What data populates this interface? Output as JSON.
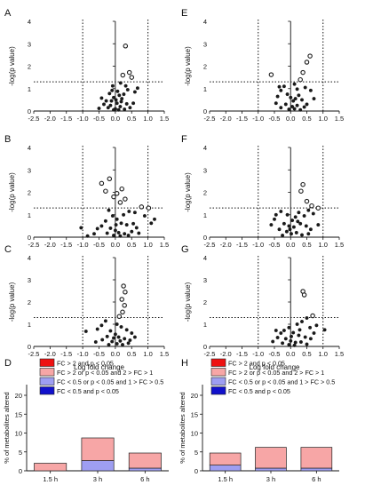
{
  "colors": {
    "dot": "#1a1a1a",
    "axis": "#111111",
    "red": "#ee1111",
    "pink": "#f7a6a6",
    "lavender": "#9e9ef2",
    "navy": "#1111cc",
    "stroke": "#222222"
  },
  "chart_data": [
    {
      "type": "scatter",
      "panel": "A",
      "xlabel": "",
      "ylabel": "-log(p value)",
      "xlim": [
        -2.5,
        1.5
      ],
      "ylim": [
        0,
        4
      ],
      "xticks": [
        "-2.5",
        "-2.0",
        "-1.5",
        "-1.0",
        "-0.5",
        "0.0",
        "0.5",
        "1.0",
        "1.5"
      ],
      "yticks": [
        "0",
        "1",
        "2",
        "3",
        "4"
      ],
      "thresholds": {
        "x": [
          -1,
          1
        ],
        "y": 1.3
      },
      "points": [
        [
          0.31,
          2.9
        ],
        [
          0.43,
          1.72
        ],
        [
          0.5,
          1.5
        ],
        [
          0.23,
          1.6
        ],
        [
          0.16,
          1.25
        ],
        [
          0.32,
          1.12
        ],
        [
          0.68,
          1.02
        ],
        [
          0.38,
          0.95
        ],
        [
          0.6,
          0.85
        ],
        [
          -0.08,
          1.12
        ],
        [
          -0.1,
          0.92
        ],
        [
          -0.18,
          0.78
        ],
        [
          -0.05,
          0.6
        ],
        [
          0.07,
          0.88
        ],
        [
          0.12,
          0.7
        ],
        [
          0.2,
          0.55
        ],
        [
          0.26,
          0.75
        ],
        [
          -0.28,
          0.45
        ],
        [
          -0.35,
          0.3
        ],
        [
          -0.15,
          0.25
        ],
        [
          0.05,
          0.35
        ],
        [
          0.15,
          0.2
        ],
        [
          0.35,
          0.32
        ],
        [
          0.45,
          0.15
        ],
        [
          -0.22,
          0.15
        ],
        [
          0.0,
          0.1
        ],
        [
          -0.05,
          0.05
        ],
        [
          0.1,
          0.05
        ],
        [
          0.28,
          0.08
        ],
        [
          0.55,
          0.35
        ],
        [
          -0.42,
          0.58
        ],
        [
          -0.5,
          0.12
        ],
        [
          0.18,
          0.42
        ],
        [
          0.02,
          0.5
        ],
        [
          -0.12,
          0.45
        ]
      ]
    },
    {
      "type": "scatter",
      "panel": "E",
      "xlabel": "",
      "ylabel": "-log(p value)",
      "xlim": [
        -2.5,
        1.5
      ],
      "ylim": [
        0,
        4
      ],
      "xticks": [
        "-2.5",
        "-2.0",
        "-1.5",
        "-1.0",
        "-0.5",
        "0.0",
        "0.5",
        "1.0",
        "1.5"
      ],
      "yticks": [
        "0",
        "1",
        "2",
        "3",
        "4"
      ],
      "thresholds": {
        "x": [
          -1,
          1
        ],
        "y": 1.3
      },
      "points": [
        [
          0.6,
          2.45
        ],
        [
          0.5,
          2.18
        ],
        [
          -0.6,
          1.62
        ],
        [
          0.38,
          1.72
        ],
        [
          0.3,
          1.4
        ],
        [
          -0.35,
          1.08
        ],
        [
          -0.3,
          0.92
        ],
        [
          -0.2,
          1.1
        ],
        [
          0.12,
          1.2
        ],
        [
          0.2,
          0.98
        ],
        [
          0.45,
          1.05
        ],
        [
          0.62,
          0.92
        ],
        [
          -0.1,
          0.75
        ],
        [
          0.0,
          0.6
        ],
        [
          0.08,
          0.45
        ],
        [
          0.25,
          0.7
        ],
        [
          0.35,
          0.5
        ],
        [
          -0.45,
          0.35
        ],
        [
          -0.15,
          0.3
        ],
        [
          0.05,
          0.2
        ],
        [
          0.2,
          0.25
        ],
        [
          0.5,
          0.3
        ],
        [
          -0.3,
          0.15
        ],
        [
          -0.05,
          0.08
        ],
        [
          0.12,
          0.1
        ],
        [
          0.3,
          0.05
        ],
        [
          0.15,
          0.55
        ],
        [
          -0.4,
          0.65
        ],
        [
          0.72,
          0.55
        ],
        [
          0.42,
          0.18
        ]
      ]
    },
    {
      "type": "scatter",
      "panel": "B",
      "xlabel": "",
      "ylabel": "-log(p value)",
      "xlim": [
        -2.5,
        1.5
      ],
      "ylim": [
        0,
        4
      ],
      "xticks": [
        "-2.5",
        "-2.0",
        "-1.5",
        "-1.0",
        "-0.5",
        "0.0",
        "0.5",
        "1.0",
        "1.5"
      ],
      "yticks": [
        "0",
        "1",
        "2",
        "3",
        "4"
      ],
      "thresholds": {
        "x": [
          -1,
          1
        ],
        "y": 1.3
      },
      "points": [
        [
          -0.18,
          2.6
        ],
        [
          0.2,
          2.15
        ],
        [
          -0.3,
          2.05
        ],
        [
          -0.42,
          2.4
        ],
        [
          0.05,
          1.95
        ],
        [
          -0.05,
          1.8
        ],
        [
          0.3,
          1.7
        ],
        [
          0.15,
          1.55
        ],
        [
          0.8,
          1.35
        ],
        [
          1.02,
          1.3
        ],
        [
          0.6,
          1.1
        ],
        [
          0.9,
          0.95
        ],
        [
          1.2,
          0.8
        ],
        [
          1.1,
          0.62
        ],
        [
          0.42,
          1.15
        ],
        [
          0.25,
          1.0
        ],
        [
          -0.2,
          1.2
        ],
        [
          -0.08,
          0.95
        ],
        [
          0.05,
          0.8
        ],
        [
          0.18,
          0.62
        ],
        [
          0.35,
          0.55
        ],
        [
          -0.3,
          0.72
        ],
        [
          -0.42,
          0.5
        ],
        [
          -0.55,
          0.38
        ],
        [
          -0.15,
          0.4
        ],
        [
          0.0,
          0.3
        ],
        [
          0.1,
          0.2
        ],
        [
          0.28,
          0.15
        ],
        [
          0.5,
          0.25
        ],
        [
          0.65,
          0.42
        ],
        [
          -0.25,
          0.18
        ],
        [
          -0.05,
          0.08
        ],
        [
          0.15,
          0.05
        ],
        [
          0.4,
          0.08
        ],
        [
          0.72,
          0.18
        ],
        [
          -0.65,
          0.15
        ],
        [
          -0.85,
          0.05
        ],
        [
          0.55,
          0.6
        ],
        [
          -1.05,
          0.42
        ],
        [
          0.02,
          0.55
        ]
      ]
    },
    {
      "type": "scatter",
      "panel": "F",
      "xlabel": "",
      "ylabel": "-log(p value)",
      "xlim": [
        -2.5,
        1.5
      ],
      "ylim": [
        0,
        4
      ],
      "xticks": [
        "-2.5",
        "-2.0",
        "-1.5",
        "-1.0",
        "-0.5",
        "0.0",
        "0.5",
        "1.0",
        "1.5"
      ],
      "yticks": [
        "0",
        "1",
        "2",
        "3",
        "4"
      ],
      "thresholds": {
        "x": [
          -1,
          1
        ],
        "y": 1.3
      },
      "points": [
        [
          0.38,
          2.35
        ],
        [
          0.32,
          2.05
        ],
        [
          0.5,
          1.6
        ],
        [
          0.65,
          1.4
        ],
        [
          0.85,
          1.3
        ],
        [
          0.55,
          1.2
        ],
        [
          0.7,
          1.05
        ],
        [
          0.42,
          0.95
        ],
        [
          0.25,
          1.1
        ],
        [
          0.15,
          0.9
        ],
        [
          0.05,
          0.75
        ],
        [
          -0.1,
          1.0
        ],
        [
          -0.3,
          1.15
        ],
        [
          -0.45,
          1.0
        ],
        [
          -0.5,
          0.8
        ],
        [
          -0.2,
          0.6
        ],
        [
          -0.05,
          0.5
        ],
        [
          0.1,
          0.45
        ],
        [
          0.3,
          0.6
        ],
        [
          0.48,
          0.5
        ],
        [
          0.62,
          0.35
        ],
        [
          -0.35,
          0.35
        ],
        [
          -0.12,
          0.25
        ],
        [
          0.02,
          0.15
        ],
        [
          0.18,
          0.2
        ],
        [
          0.35,
          0.1
        ],
        [
          -0.25,
          0.08
        ],
        [
          0.55,
          0.15
        ],
        [
          0.85,
          0.55
        ],
        [
          -0.6,
          0.55
        ],
        [
          0.22,
          0.7
        ],
        [
          -0.02,
          0.35
        ]
      ]
    },
    {
      "type": "scatter",
      "panel": "C",
      "xlabel": "Log fold change",
      "ylabel": "-log(p value)",
      "xlim": [
        -2.5,
        1.5
      ],
      "ylim": [
        0,
        4
      ],
      "xticks": [
        "-2.5",
        "-2.0",
        "-1.5",
        "-1.0",
        "-0.5",
        "0.0",
        "0.5",
        "1.0",
        "1.5"
      ],
      "yticks": [
        "0",
        "1",
        "2",
        "3",
        "4"
      ],
      "thresholds": {
        "x": [
          -1,
          1
        ],
        "y": 1.3
      },
      "points": [
        [
          0.25,
          2.72
        ],
        [
          0.3,
          2.45
        ],
        [
          0.2,
          2.12
        ],
        [
          0.28,
          1.85
        ],
        [
          0.22,
          1.55
        ],
        [
          0.12,
          1.35
        ],
        [
          -0.3,
          1.15
        ],
        [
          -0.42,
          0.95
        ],
        [
          -0.55,
          0.78
        ],
        [
          -0.9,
          0.68
        ],
        [
          0.05,
          1.0
        ],
        [
          0.18,
          0.88
        ],
        [
          0.35,
          0.75
        ],
        [
          0.5,
          0.6
        ],
        [
          -0.15,
          0.7
        ],
        [
          0.0,
          0.55
        ],
        [
          0.1,
          0.42
        ],
        [
          0.28,
          0.35
        ],
        [
          0.45,
          0.28
        ],
        [
          -0.25,
          0.45
        ],
        [
          -0.4,
          0.3
        ],
        [
          -0.1,
          0.22
        ],
        [
          0.05,
          0.12
        ],
        [
          0.22,
          0.08
        ],
        [
          -0.2,
          0.08
        ],
        [
          0.6,
          0.42
        ],
        [
          0.4,
          0.15
        ],
        [
          -0.05,
          0.38
        ],
        [
          0.15,
          0.25
        ],
        [
          -0.6,
          0.2
        ]
      ]
    },
    {
      "type": "scatter",
      "panel": "G",
      "xlabel": "Log fold change",
      "ylabel": "-log(p value)",
      "xlim": [
        -2.5,
        1.5
      ],
      "ylim": [
        0,
        4
      ],
      "xticks": [
        "-2.5",
        "-2.0",
        "-1.5",
        "-1.0",
        "-0.5",
        "0.0",
        "0.5",
        "1.0",
        "1.5"
      ],
      "yticks": [
        "0",
        "1",
        "2",
        "3",
        "4"
      ],
      "thresholds": {
        "x": [
          -1,
          1
        ],
        "y": 1.3
      },
      "points": [
        [
          0.38,
          2.48
        ],
        [
          0.42,
          2.32
        ],
        [
          0.68,
          1.38
        ],
        [
          0.5,
          1.28
        ],
        [
          0.35,
          1.12
        ],
        [
          0.2,
          1.0
        ],
        [
          0.8,
          0.95
        ],
        [
          1.05,
          0.75
        ],
        [
          0.6,
          0.85
        ],
        [
          -0.05,
          0.85
        ],
        [
          -0.2,
          0.72
        ],
        [
          -0.3,
          0.6
        ],
        [
          0.08,
          0.62
        ],
        [
          0.25,
          0.5
        ],
        [
          0.45,
          0.42
        ],
        [
          0.62,
          0.35
        ],
        [
          -0.4,
          0.4
        ],
        [
          -0.15,
          0.35
        ],
        [
          0.0,
          0.25
        ],
        [
          0.15,
          0.18
        ],
        [
          0.32,
          0.2
        ],
        [
          -0.25,
          0.15
        ],
        [
          -0.05,
          0.08
        ],
        [
          0.12,
          0.05
        ],
        [
          0.5,
          0.1
        ],
        [
          -0.55,
          0.22
        ],
        [
          0.72,
          0.6
        ],
        [
          0.28,
          0.75
        ],
        [
          -0.45,
          0.72
        ],
        [
          0.02,
          0.45
        ]
      ]
    },
    {
      "type": "bar",
      "panel": "D",
      "stacked": true,
      "ylabel": "% of metabolites altered",
      "ylim": [
        0,
        20
      ],
      "yticks": [
        "0",
        "5",
        "10",
        "15",
        "20"
      ],
      "categories": [
        "1.5 h",
        "3 h",
        "6 h"
      ],
      "legend": [
        {
          "label": "FC > 2 and p < 0.05",
          "color": "red"
        },
        {
          "label": "FC > 2 or p < 0.05 and 2 > FC > 1",
          "color": "pink"
        },
        {
          "label": "FC < 0.5 or p < 0.05 and 1 > FC > 0.5",
          "color": "lavender"
        },
        {
          "label": "FC < 0.5 and p < 0.05",
          "color": "navy"
        }
      ],
      "series": [
        {
          "name": "FC > 2 and p < 0.05",
          "color": "red",
          "values": [
            0,
            0,
            0
          ]
        },
        {
          "name": "FC > 2 or p < 0.05 and 2 > FC > 1",
          "color": "pink",
          "values": [
            2.0,
            6.0,
            4.0
          ]
        },
        {
          "name": "FC < 0.5 or p < 0.05 and 1 > FC > 0.5",
          "color": "lavender",
          "values": [
            0,
            2.7,
            0.7
          ]
        },
        {
          "name": "FC < 0.5 and p < 0.05",
          "color": "navy",
          "values": [
            0,
            0,
            0
          ]
        }
      ]
    },
    {
      "type": "bar",
      "panel": "H",
      "stacked": true,
      "ylabel": "% of metabolites altered",
      "ylim": [
        0,
        20
      ],
      "yticks": [
        "0",
        "5",
        "10",
        "15",
        "20"
      ],
      "categories": [
        "1.5 h",
        "3 h",
        "6 h"
      ],
      "legend": [
        {
          "label": "FC > 2 and p < 0.05",
          "color": "red"
        },
        {
          "label": "FC > 2 or p < 0.05 and 2 > FC > 1",
          "color": "pink"
        },
        {
          "label": "FC < 0.5 or p < 0.05 and 1 > FC > 0.5",
          "color": "lavender"
        },
        {
          "label": "FC < 0.5 and p < 0.05",
          "color": "navy"
        }
      ],
      "series": [
        {
          "name": "FC > 2 and p < 0.05",
          "color": "red",
          "values": [
            0,
            0,
            0
          ]
        },
        {
          "name": "FC > 2 or p < 0.05 and 2 > FC > 1",
          "color": "pink",
          "values": [
            3.2,
            5.5,
            5.5
          ]
        },
        {
          "name": "FC < 0.5 or p < 0.05 and 1 > FC > 0.5",
          "color": "lavender",
          "values": [
            1.5,
            0.7,
            0.7
          ]
        },
        {
          "name": "FC < 0.5 and p < 0.05",
          "color": "navy",
          "values": [
            0,
            0,
            0
          ]
        }
      ]
    }
  ]
}
